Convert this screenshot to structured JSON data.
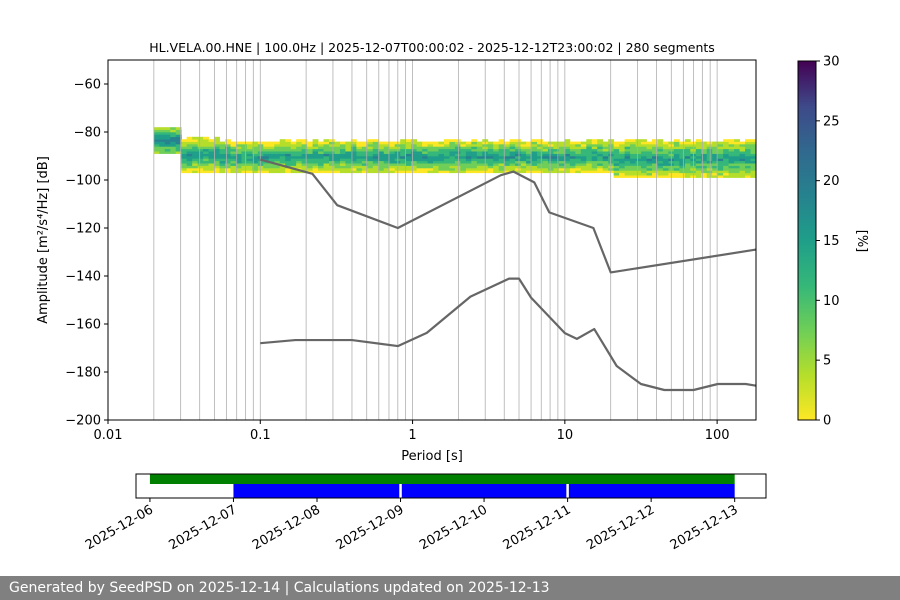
{
  "chart_data": [
    {
      "type": "heatmap",
      "title": "HL.VELA.00.HNE | 100.0Hz | 2025-12-07T00:00:02 - 2025-12-12T23:00:02 | 280 segments",
      "xlabel": "Period [s]",
      "ylabel": "Amplitude [m²/s⁴/Hz] [dB]",
      "x_scale": "log",
      "xlim": [
        0.01,
        180
      ],
      "ylim": [
        -200,
        -50
      ],
      "x_ticks": [
        "0.01",
        "0.1",
        "1",
        "10",
        "100"
      ],
      "y_ticks": [
        "−200",
        "−180",
        "−160",
        "−140",
        "−120",
        "−100",
        "−80",
        "−60"
      ],
      "grid": true,
      "colorbar": {
        "label": "[%]",
        "range": [
          0,
          30
        ],
        "ticks": [
          "0",
          "5",
          "10",
          "15",
          "20",
          "25",
          "30"
        ],
        "colormap": "viridis_r"
      },
      "heatmap_extent": {
        "period_min": 0.02,
        "period_max": 180,
        "db_core": [
          -97,
          -82
        ],
        "db_spread": [
          -99,
          -78
        ]
      },
      "noise_models": [
        {
          "points": [
            [
              0.1,
              -91.5
            ],
            [
              0.22,
              -97.4
            ],
            [
              0.32,
              -110.5
            ],
            [
              0.8,
              -120
            ],
            [
              3.8,
              -98
            ],
            [
              4.6,
              -96.5
            ],
            [
              6.3,
              -101
            ],
            [
              7.9,
              -113.5
            ],
            [
              15.4,
              -120
            ],
            [
              20,
              -138.5
            ],
            [
              180,
              -129
            ]
          ]
        },
        {
          "points": [
            [
              0.1,
              -168
            ],
            [
              0.17,
              -166.7
            ],
            [
              0.4,
              -166.7
            ],
            [
              0.8,
              -169.2
            ],
            [
              1.24,
              -163.7
            ],
            [
              2.4,
              -148.6
            ],
            [
              4.3,
              -141.1
            ],
            [
              5.0,
              -141.1
            ],
            [
              6.0,
              -149
            ],
            [
              10,
              -163.8
            ],
            [
              12,
              -166.2
            ],
            [
              15.6,
              -162.1
            ],
            [
              21.9,
              -177.5
            ],
            [
              31.6,
              -185
            ],
            [
              45,
              -187.5
            ],
            [
              70,
              -187.5
            ],
            [
              101,
              -185
            ],
            [
              154,
              -185
            ],
            [
              180,
              -185.7
            ]
          ]
        }
      ]
    },
    {
      "type": "bar",
      "x_ticks": [
        "2025-12-06",
        "2025-12-07",
        "2025-12-08",
        "2025-12-09",
        "2025-12-10",
        "2025-12-11",
        "2025-12-12",
        "2025-12-13"
      ],
      "xlim": [
        "2025-12-05T20:00",
        "2025-12-13T09:00"
      ],
      "series": [
        {
          "color": "#008000",
          "intervals": [
            [
              "2025-12-06T00:00",
              "2025-12-13T00:00"
            ]
          ]
        },
        {
          "color": "#0000ff",
          "intervals": [
            [
              "2025-12-07T00:00",
              "2025-12-09T00:00"
            ],
            [
              "2025-12-09T00:00",
              "2025-12-11T00:00"
            ],
            [
              "2025-12-11T00:00",
              "2025-12-13T00:00"
            ]
          ]
        }
      ]
    }
  ],
  "footer": {
    "text": "Generated by SeedPSD on 2025-12-14 | Calculations updated on 2025-12-13"
  }
}
